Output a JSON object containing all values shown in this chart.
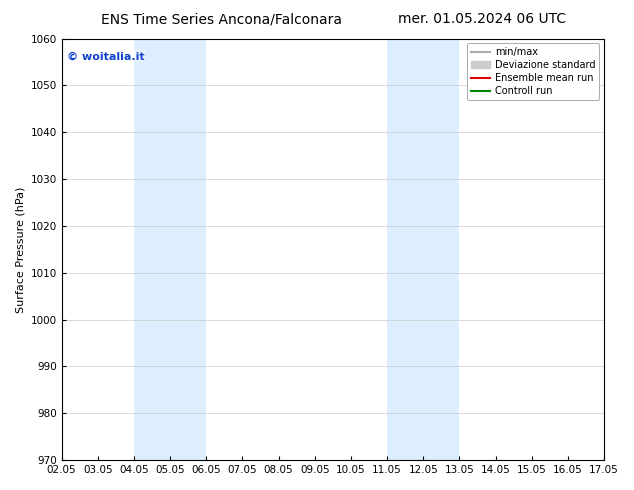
{
  "title_left": "ENS Time Series Ancona/Falconara",
  "title_right": "mer. 01.05.2024 06 UTC",
  "ylabel": "Surface Pressure (hPa)",
  "ylim": [
    970,
    1060
  ],
  "yticks": [
    970,
    980,
    990,
    1000,
    1010,
    1020,
    1030,
    1040,
    1050,
    1060
  ],
  "xtick_labels": [
    "02.05",
    "03.05",
    "04.05",
    "05.05",
    "06.05",
    "07.05",
    "08.05",
    "09.05",
    "10.05",
    "11.05",
    "12.05",
    "13.05",
    "14.05",
    "15.05",
    "16.05",
    "17.05"
  ],
  "xtick_positions": [
    2,
    3,
    4,
    5,
    6,
    7,
    8,
    9,
    10,
    11,
    12,
    13,
    14,
    15,
    16,
    17
  ],
  "xlim": [
    2,
    17
  ],
  "shaded_bands": [
    {
      "x_start": 4,
      "x_end": 6
    },
    {
      "x_start": 11,
      "x_end": 13
    }
  ],
  "shaded_color": "#ddeeff",
  "watermark_text": "© woitalia.it",
  "watermark_color": "#1144cc",
  "legend_entries": [
    {
      "label": "min/max",
      "color": "#aaaaaa",
      "lw": 1.5,
      "type": "line"
    },
    {
      "label": "Deviazione standard",
      "color": "#cccccc",
      "lw": 8,
      "type": "patch"
    },
    {
      "label": "Ensemble mean run",
      "color": "#dd0000",
      "lw": 1.5,
      "type": "line"
    },
    {
      "label": "Controll run",
      "color": "#008800",
      "lw": 1.5,
      "type": "line"
    }
  ],
  "bg_color": "#ffffff",
  "grid_color": "#cccccc",
  "title_fontsize": 10,
  "ylabel_fontsize": 8,
  "tick_fontsize": 7.5,
  "watermark_fontsize": 8,
  "legend_fontsize": 7
}
